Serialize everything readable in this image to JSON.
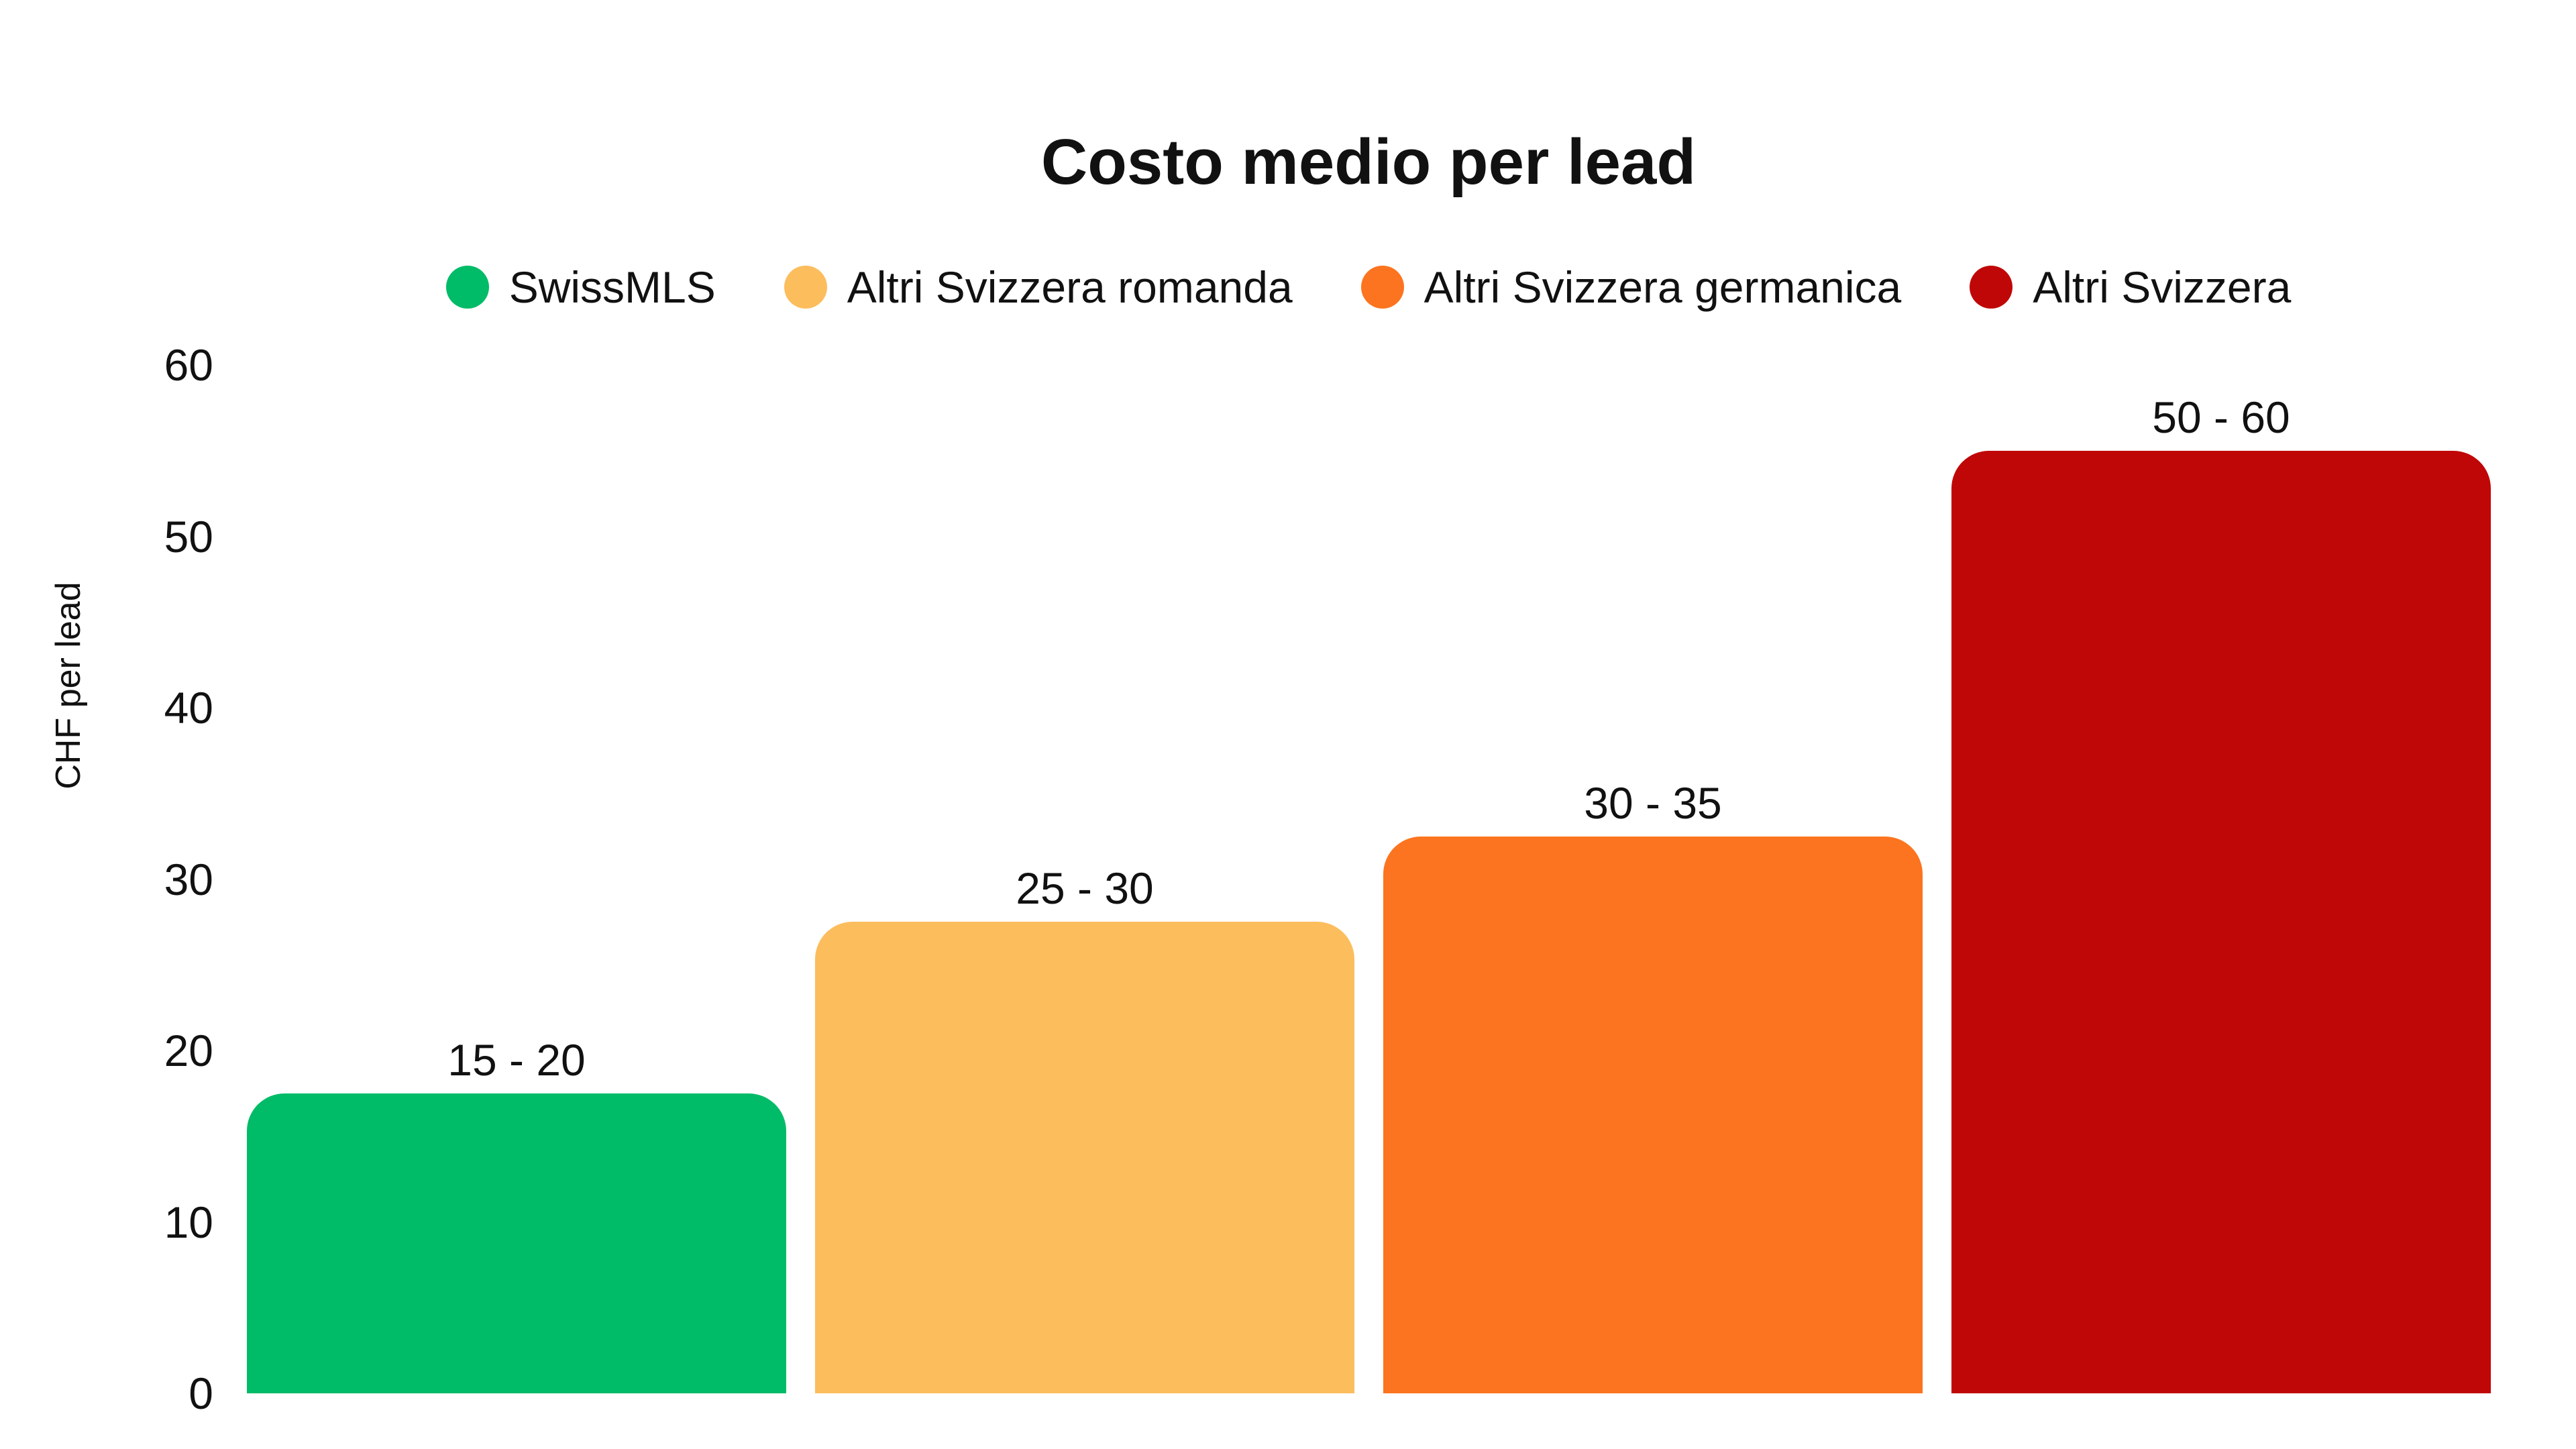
{
  "chart_data": {
    "type": "bar",
    "title": "Costo medio per lead",
    "ylabel": "CHF per lead",
    "xlabel": "",
    "categories": [
      "SwissMLS",
      "Altri Svizzera romanda",
      "Altri Svizzera germanica",
      "Altri Svizzera"
    ],
    "values": [
      17.5,
      27.5,
      32.5,
      55
    ],
    "value_range_labels": [
      "15 - 20",
      "25 - 30",
      "30 - 35",
      "50 - 60"
    ],
    "colors": [
      "#00BB67",
      "#FCBD5D",
      "#FC741F",
      "#C00707"
    ],
    "ylim": [
      0,
      60
    ],
    "yticks": [
      0,
      10,
      20,
      30,
      40,
      50,
      60
    ],
    "grid": false,
    "axis_lines": false,
    "legend_position": "top",
    "background": "#FFFFFF",
    "text_color": "#111111"
  }
}
